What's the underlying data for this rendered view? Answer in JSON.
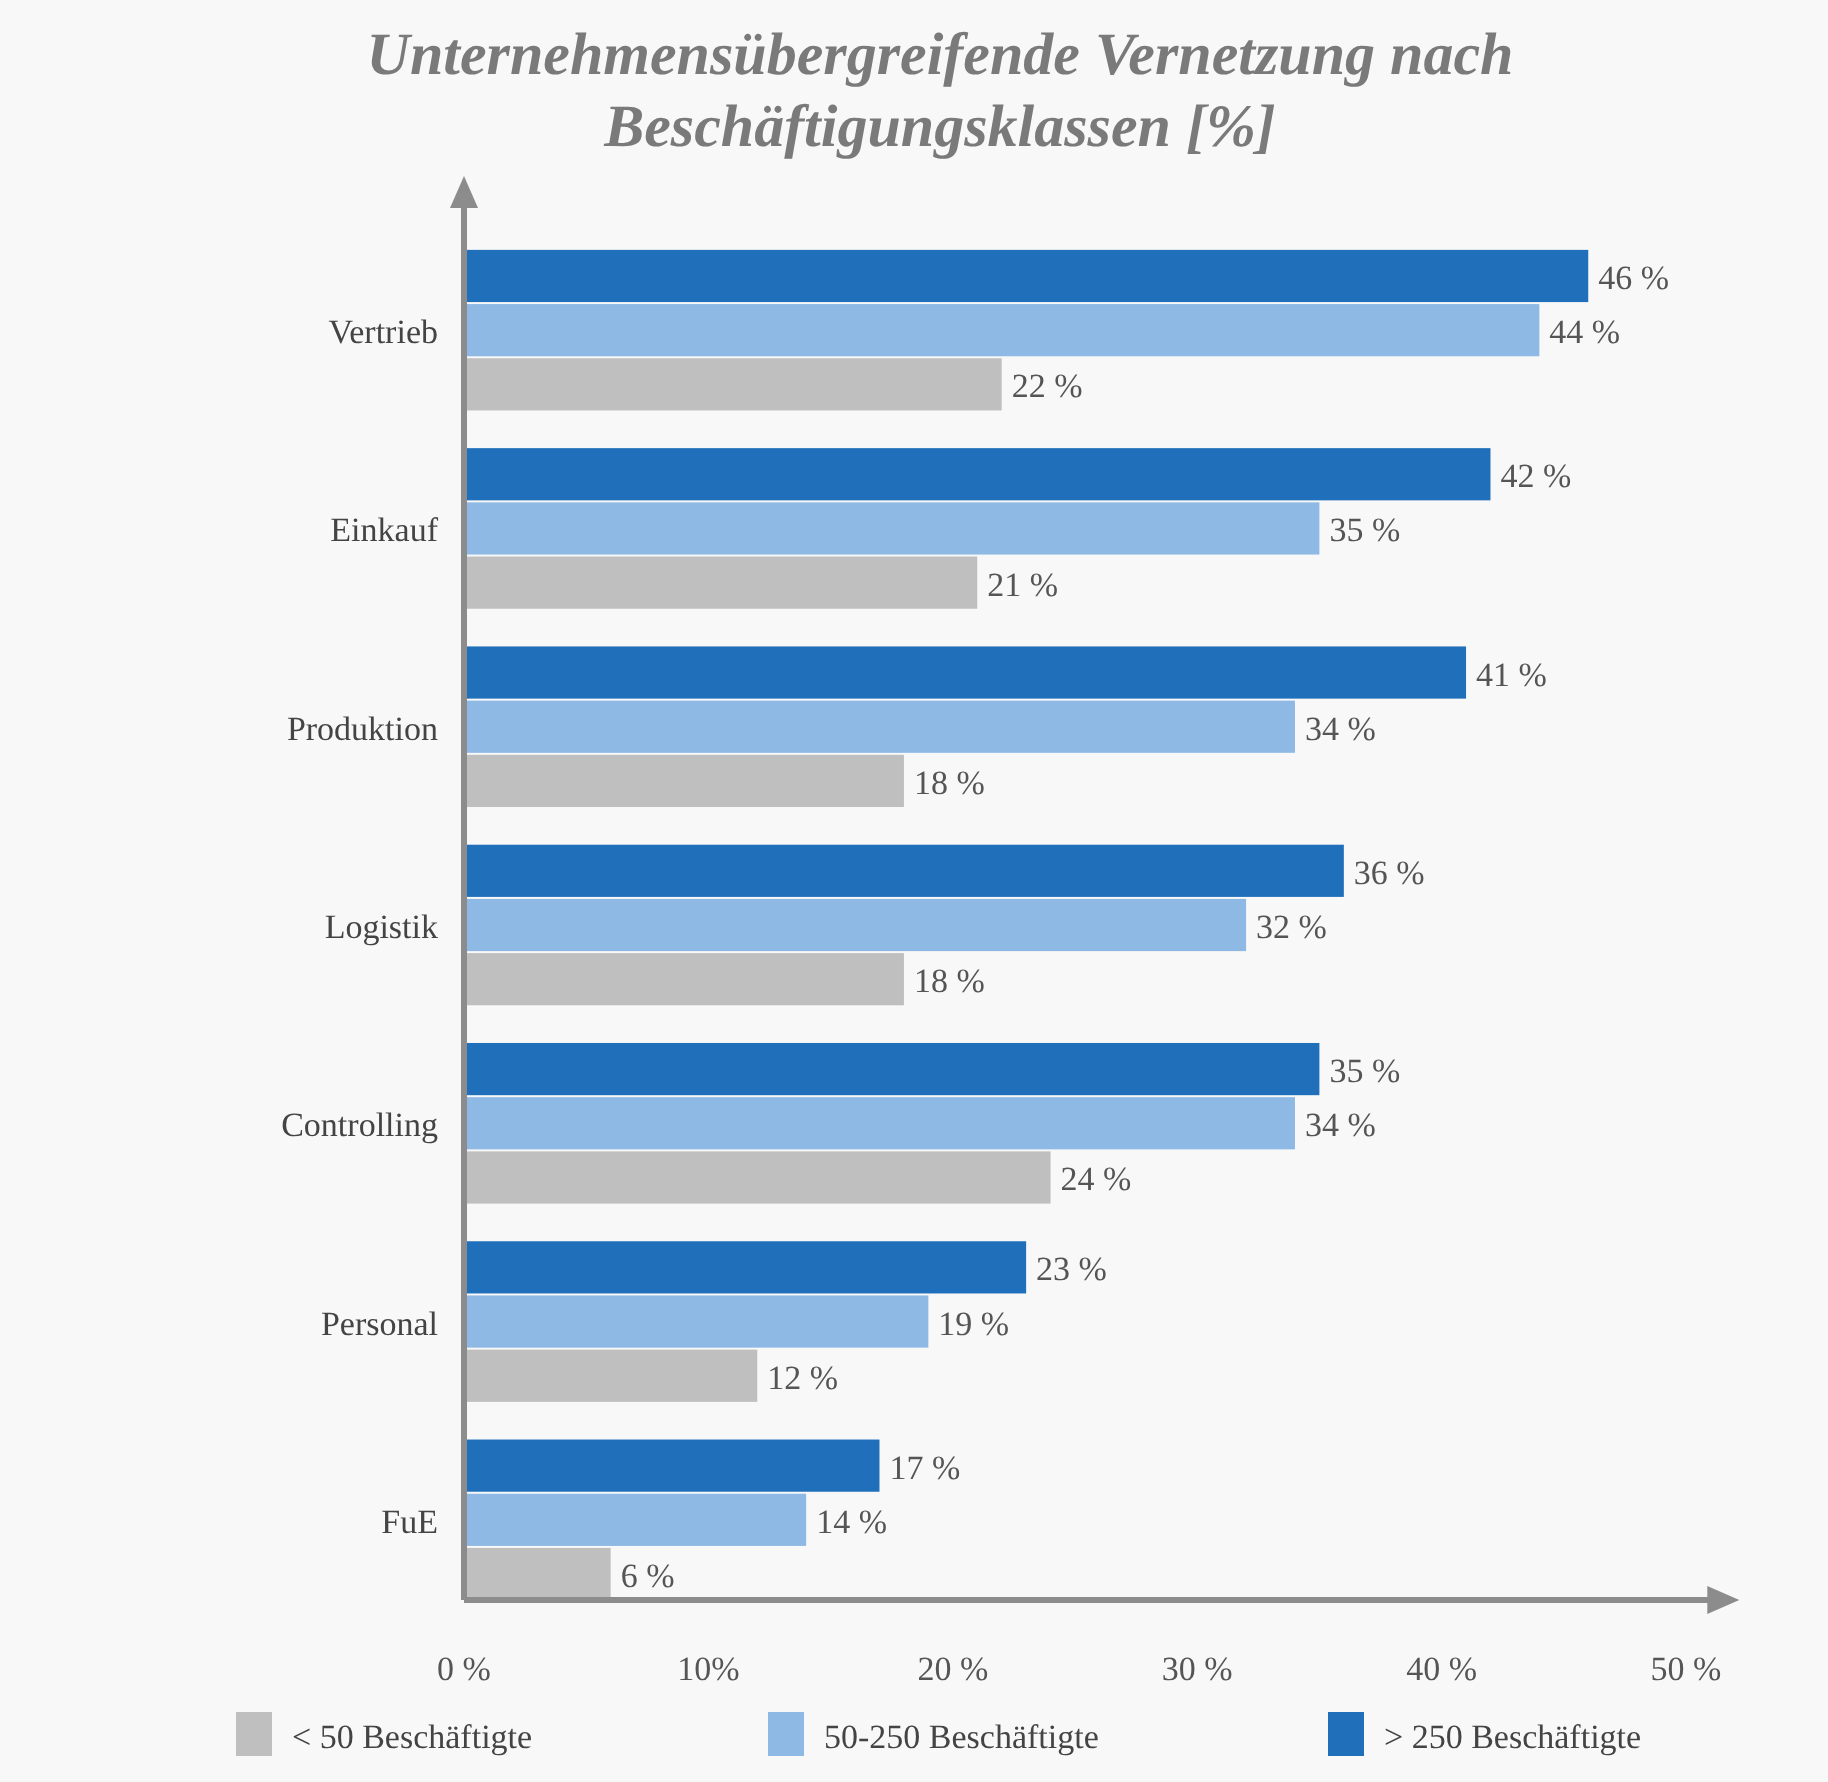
{
  "chart_data": {
    "type": "bar",
    "orientation": "horizontal",
    "title": "Unternehmensübergreifende Vernetzung nach Beschäftigungsklassen [%]",
    "categories": [
      "Vertrieb",
      "Einkauf",
      "Produktion",
      "Logistik",
      "Controlling",
      "Personal",
      "FuE"
    ],
    "series": [
      {
        "name": "< 50 Beschäftigte",
        "color": "#bfbfbf",
        "values": [
          22,
          21,
          18,
          18,
          24,
          12,
          6
        ],
        "value_labels": [
          "22 %",
          "21 %",
          "18 %",
          "18 %",
          "24 %",
          "12 %",
          "6 %"
        ]
      },
      {
        "name": "50-250 Beschäftigte",
        "color": "#8db9e4",
        "values": [
          44,
          35,
          34,
          32,
          34,
          19,
          14
        ],
        "value_labels": [
          "44 %",
          "35 %",
          "34 %",
          "32 %",
          "34 %",
          "19 %",
          "14 %"
        ]
      },
      {
        "name": "> 250 Beschäftigte",
        "color": "#1f6fba",
        "values": [
          46,
          42,
          41,
          36,
          35,
          23,
          17
        ],
        "value_labels": [
          "46 %",
          "42 %",
          "41 %",
          "36 %",
          "35 %",
          "23 %",
          "17 %"
        ]
      }
    ],
    "xlim": [
      0,
      51.2
    ],
    "xticks": [
      {
        "value": 0,
        "label": "0 %"
      },
      {
        "value": 10,
        "label": "10%"
      },
      {
        "value": 20,
        "label": "20 %"
      },
      {
        "value": 30,
        "label": "30 %"
      },
      {
        "value": 40,
        "label": "40 %"
      },
      {
        "value": 50,
        "label": "50 %"
      }
    ],
    "grid": false,
    "legend": "bottom"
  }
}
